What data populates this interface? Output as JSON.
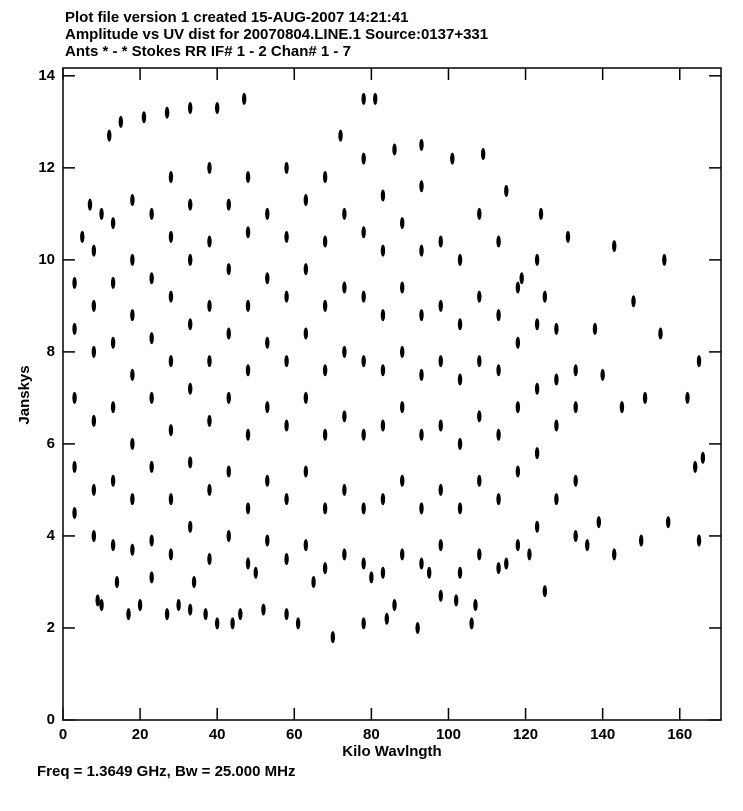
{
  "chart_data": {
    "type": "scatter",
    "title_lines": [
      "Plot file version 1  created 15-AUG-2007 14:21:41",
      "Amplitude vs UV dist for 20070804.LINE.1   Source:0137+331",
      "Ants * - *    Stokes RR  IF# 1 - 2  Chan# 1 - 7"
    ],
    "xlabel": "Kilo Wavlngth",
    "ylabel": "Janskys",
    "footer": "Freq = 1.3649 GHz, Bw = 25.000 MHz",
    "xlim": [
      0,
      170.7
    ],
    "ylim": [
      0,
      14.17
    ],
    "xticks": [
      0,
      20,
      40,
      60,
      80,
      100,
      120,
      140,
      160
    ],
    "yticks": [
      0,
      2,
      4,
      6,
      8,
      10,
      12,
      14
    ],
    "color": "#000000",
    "x": [
      9,
      10,
      17,
      20,
      27,
      30,
      33,
      37,
      40,
      44,
      46,
      52,
      58,
      61,
      70,
      78,
      84,
      92,
      106,
      86,
      98,
      102,
      107,
      125,
      143,
      150,
      157,
      165,
      136,
      139,
      133,
      14,
      23,
      34,
      50,
      65,
      80,
      95,
      115,
      121,
      47,
      40,
      33,
      27,
      21,
      15,
      12,
      10,
      5,
      7,
      78,
      81,
      72,
      86,
      93,
      101,
      109,
      115,
      124,
      131,
      143,
      156,
      148,
      138,
      165,
      162,
      164,
      166,
      140,
      145,
      155,
      151,
      128,
      125,
      119,
      3,
      3,
      3,
      3,
      3,
      8,
      8,
      8,
      8,
      8,
      8,
      13,
      13,
      13,
      13,
      13,
      13,
      18,
      18,
      18,
      18,
      18,
      18,
      18,
      23,
      23,
      23,
      23,
      23,
      23,
      28,
      28,
      28,
      28,
      28,
      28,
      28,
      33,
      33,
      33,
      33,
      33,
      33,
      38,
      38,
      38,
      38,
      38,
      38,
      38,
      43,
      43,
      43,
      43,
      43,
      43,
      48,
      48,
      48,
      48,
      48,
      48,
      48,
      53,
      53,
      53,
      53,
      53,
      53,
      58,
      58,
      58,
      58,
      58,
      58,
      58,
      63,
      63,
      63,
      63,
      63,
      63,
      68,
      68,
      68,
      68,
      68,
      68,
      68,
      73,
      73,
      73,
      73,
      73,
      73,
      78,
      78,
      78,
      78,
      78,
      78,
      78,
      83,
      83,
      83,
      83,
      83,
      83,
      83,
      88,
      88,
      88,
      88,
      88,
      88,
      93,
      93,
      93,
      93,
      93,
      93,
      93,
      98,
      98,
      98,
      98,
      98,
      98,
      103,
      103,
      103,
      103,
      103,
      103,
      108,
      108,
      108,
      108,
      108,
      108,
      113,
      113,
      113,
      113,
      113,
      113,
      118,
      118,
      118,
      118,
      118,
      123,
      123,
      123,
      123,
      123,
      128,
      128,
      128,
      133,
      133,
      133
    ],
    "values": [
      2.6,
      2.5,
      2.3,
      2.5,
      2.3,
      2.5,
      2.4,
      2.3,
      2.1,
      2.1,
      2.3,
      2.4,
      2.3,
      2.1,
      1.8,
      2.1,
      2.2,
      2.0,
      2.1,
      2.5,
      2.7,
      2.6,
      2.5,
      2.8,
      3.6,
      3.9,
      4.3,
      3.9,
      3.8,
      4.3,
      4.0,
      3.0,
      3.1,
      3.0,
      3.2,
      3.0,
      3.1,
      3.2,
      3.4,
      3.6,
      13.5,
      13.3,
      13.3,
      13.2,
      13.1,
      13.0,
      12.7,
      11.0,
      10.5,
      11.2,
      13.5,
      13.5,
      12.7,
      12.4,
      12.5,
      12.2,
      12.3,
      11.5,
      11.0,
      10.5,
      10.3,
      10.0,
      9.1,
      8.5,
      7.8,
      7.0,
      5.5,
      5.7,
      7.5,
      6.8,
      8.4,
      7.0,
      8.5,
      9.2,
      9.6,
      4.5,
      5.5,
      7,
      8.5,
      9.5,
      4,
      5,
      6.5,
      8,
      9,
      10.2,
      3.8,
      5.2,
      6.8,
      8.2,
      9.5,
      10.8,
      3.7,
      4.8,
      6,
      7.5,
      8.8,
      10,
      11.3,
      3.9,
      5.5,
      7,
      8.3,
      9.6,
      11,
      3.6,
      4.8,
      6.3,
      7.8,
      9.2,
      10.5,
      11.8,
      4.2,
      5.6,
      7.2,
      8.6,
      10,
      11.2,
      3.5,
      5,
      6.5,
      7.8,
      9,
      10.4,
      12,
      4,
      5.4,
      7,
      8.4,
      9.8,
      11.2,
      3.4,
      4.6,
      6.2,
      7.6,
      9,
      10.6,
      11.8,
      3.9,
      5.2,
      6.8,
      8.2,
      9.6,
      11,
      3.5,
      4.8,
      6.4,
      7.8,
      9.2,
      10.5,
      12,
      3.8,
      5.4,
      7,
      8.4,
      9.8,
      11.3,
      3.3,
      4.6,
      6.2,
      7.6,
      9,
      10.4,
      11.8,
      3.6,
      5,
      6.6,
      8,
      9.4,
      11,
      3.4,
      4.6,
      6.2,
      7.8,
      9.2,
      10.6,
      12.2,
      3.2,
      4.8,
      6.4,
      7.6,
      8.8,
      10.2,
      11.4,
      3.6,
      5.2,
      6.8,
      8,
      9.4,
      10.8,
      3.4,
      4.6,
      6.2,
      7.5,
      8.8,
      10.2,
      11.6,
      3.8,
      5,
      6.4,
      7.8,
      9,
      10.4,
      3.2,
      4.6,
      6,
      7.4,
      8.6,
      10,
      3.6,
      5.2,
      6.6,
      7.8,
      9.2,
      11,
      3.3,
      4.8,
      6.2,
      7.6,
      8.8,
      10.4,
      3.8,
      5.4,
      6.8,
      8.2,
      9.4,
      4.2,
      5.8,
      7.2,
      8.6,
      10,
      4.8,
      6.4,
      7.4,
      5.2,
      6.8,
      7.6
    ]
  }
}
